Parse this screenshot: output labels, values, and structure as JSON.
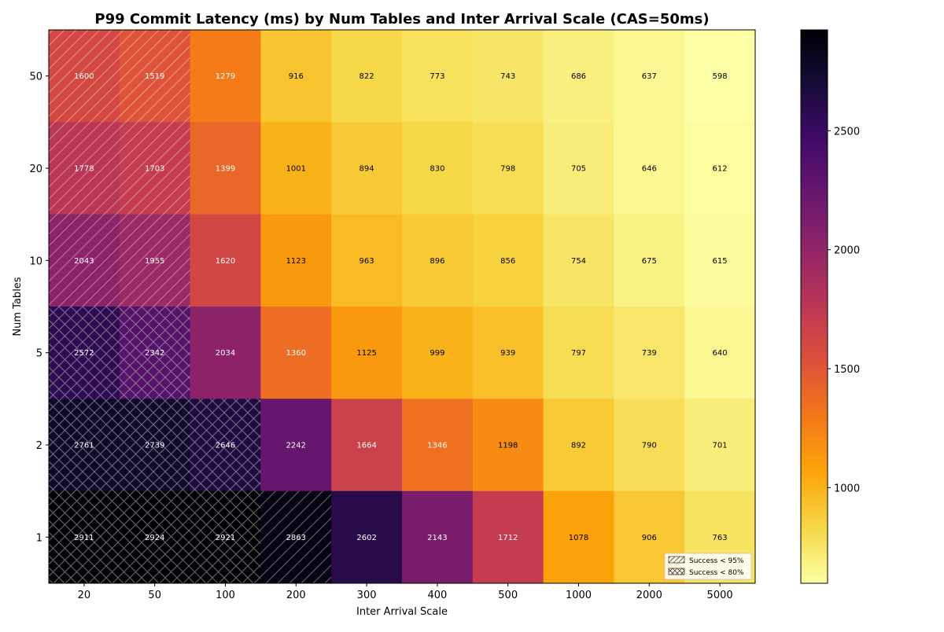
{
  "chart_data": {
    "type": "heatmap",
    "title": "P99 Commit Latency (ms) by Num Tables and Inter Arrival Scale (CAS=50ms)",
    "xlabel": "Inter Arrival Scale",
    "ylabel": "Num Tables",
    "x_categories": [
      "20",
      "50",
      "100",
      "200",
      "300",
      "400",
      "500",
      "1000",
      "2000",
      "5000"
    ],
    "y_categories": [
      "50",
      "20",
      "10",
      "5",
      "2",
      "1"
    ],
    "values": [
      [
        1600,
        1519,
        1279,
        916,
        822,
        773,
        743,
        686,
        637,
        598
      ],
      [
        1778,
        1703,
        1399,
        1001,
        894,
        830,
        798,
        705,
        646,
        612
      ],
      [
        2043,
        1955,
        1620,
        1123,
        963,
        896,
        856,
        754,
        675,
        615
      ],
      [
        2572,
        2342,
        2034,
        1360,
        1125,
        999,
        939,
        797,
        739,
        640
      ],
      [
        2761,
        2739,
        2646,
        2242,
        1664,
        1346,
        1198,
        892,
        790,
        701
      ],
      [
        2911,
        2924,
        2921,
        2863,
        2602,
        2143,
        1712,
        1078,
        906,
        763
      ]
    ],
    "hatch": [
      [
        "single",
        "single",
        "",
        "",
        "",
        "",
        "",
        "",
        "",
        ""
      ],
      [
        "single",
        "single",
        "",
        "",
        "",
        "",
        "",
        "",
        "",
        ""
      ],
      [
        "single",
        "single",
        "",
        "",
        "",
        "",
        "",
        "",
        "",
        ""
      ],
      [
        "cross",
        "cross",
        "",
        "",
        "",
        "",
        "",
        "",
        "",
        ""
      ],
      [
        "cross",
        "cross",
        "cross",
        "",
        "",
        "",
        "",
        "",
        "",
        ""
      ],
      [
        "cross",
        "cross",
        "cross",
        "single",
        "",
        "",
        "",
        "",
        "",
        ""
      ]
    ],
    "colormap": "inferno_r",
    "vmin": 598,
    "vmax": 2924,
    "colorbar_ticks": [
      1000,
      1500,
      2000,
      2500
    ],
    "legend": {
      "position": "bottom-right",
      "entries": [
        {
          "label": "Success < 95%",
          "hatch": "single"
        },
        {
          "label": "Success < 80%",
          "hatch": "cross"
        }
      ]
    }
  }
}
